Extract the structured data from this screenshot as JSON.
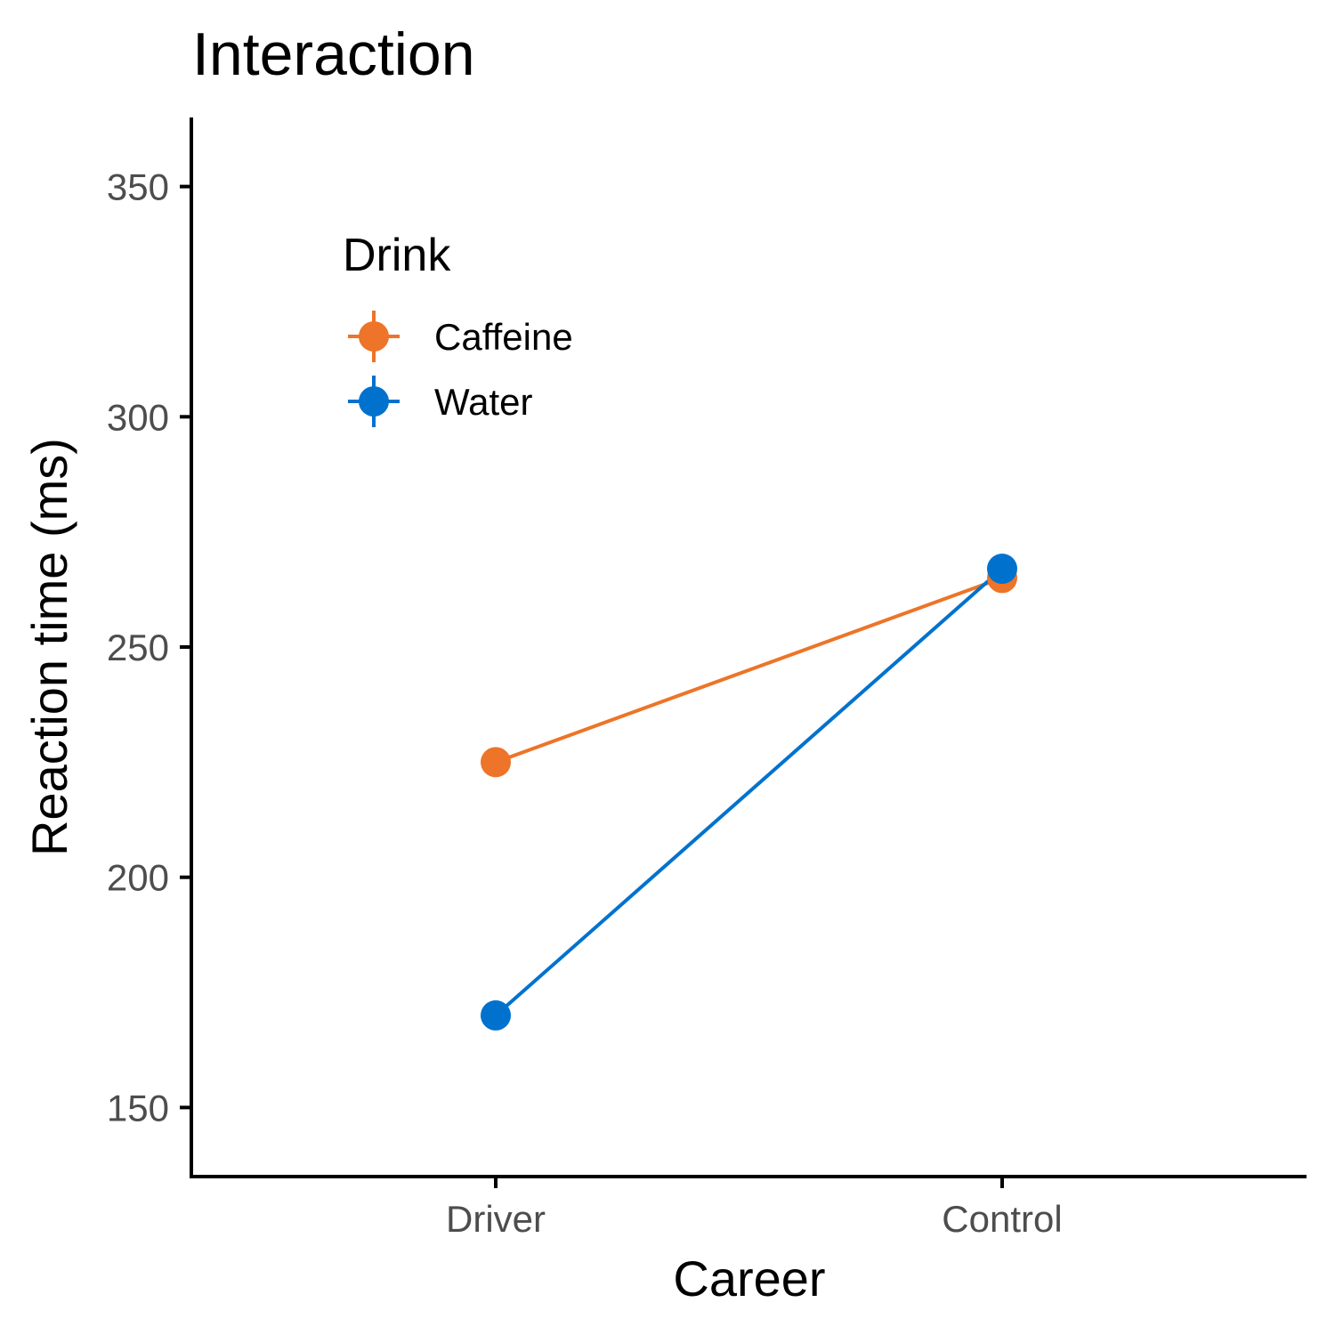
{
  "chart_data": {
    "type": "line",
    "title": "Interaction",
    "xlabel": "Career",
    "ylabel": "Reaction time (ms)",
    "categories": [
      "Driver",
      "Control"
    ],
    "ylim": [
      135,
      365
    ],
    "yticks": [
      150,
      200,
      250,
      300,
      350
    ],
    "grid": false,
    "legend": {
      "title": "Drink",
      "placement": "top-left"
    },
    "series": [
      {
        "name": "Caffeine",
        "color": "#ED7428",
        "values": [
          225,
          265
        ]
      },
      {
        "name": "Water",
        "color": "#0072CE",
        "values": [
          170,
          267
        ]
      }
    ]
  }
}
